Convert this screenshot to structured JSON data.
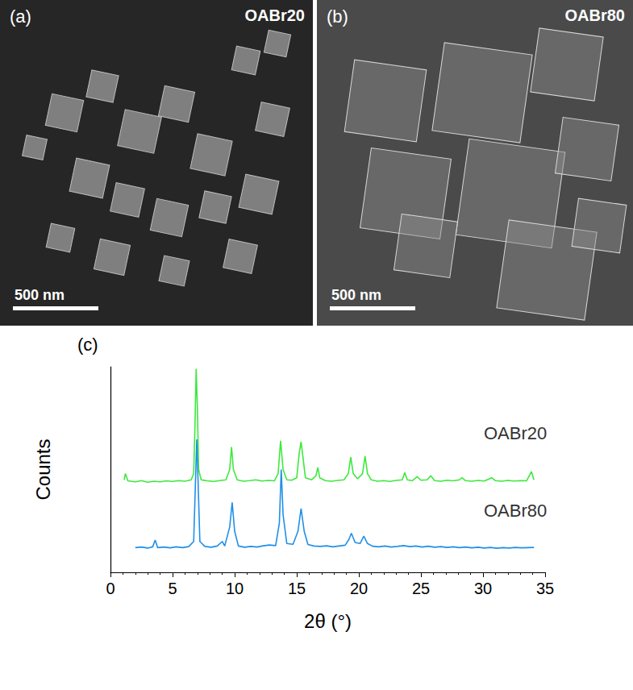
{
  "images": [
    {
      "letter": "(a)",
      "label": "OABr20",
      "scale_bar": "500 nm"
    },
    {
      "letter": "(b)",
      "label": "OABr80",
      "scale_bar": "500 nm"
    }
  ],
  "chart_data": {
    "type": "line",
    "annotations": [
      "(c)"
    ],
    "x_label": "2θ (°)",
    "y_label": "Counts",
    "xlim": [
      0,
      35
    ],
    "xticks": [
      0,
      5,
      10,
      15,
      20,
      25,
      30,
      35
    ],
    "ylim": [
      0,
      100
    ],
    "yticks": [],
    "tick_labels": "x",
    "grid": false,
    "series": [
      {
        "name": "OABr20",
        "color": "#3ee83e",
        "x": [
          1.1,
          1.2,
          1.4,
          2,
          2.5,
          3,
          3.5,
          4,
          4.5,
          5,
          5.5,
          6,
          6.5,
          6.7,
          6.8,
          6.9,
          7.0,
          7.1,
          7.3,
          7.8,
          8.3,
          8.8,
          9.3,
          9.6,
          9.75,
          9.9,
          10.2,
          10.7,
          11.2,
          11.7,
          12.2,
          12.7,
          13.2,
          13.5,
          13.7,
          13.9,
          14.2,
          14.6,
          15.0,
          15.2,
          15.35,
          15.5,
          15.7,
          16.2,
          16.55,
          16.7,
          16.85,
          17.3,
          17.8,
          18.3,
          18.8,
          19.15,
          19.35,
          19.55,
          19.9,
          20.3,
          20.5,
          20.7,
          21,
          21.5,
          22,
          22.5,
          23,
          23.5,
          23.7,
          23.9,
          24.3,
          24.7,
          25,
          25.5,
          25.8,
          26.1,
          26.6,
          27.1,
          27.6,
          28.1,
          28.3,
          28.6,
          29.1,
          29.6,
          30.1,
          30.7,
          31,
          31.5,
          32,
          32.5,
          33,
          33.5,
          33.9,
          34.1
        ],
        "values": [
          45,
          48,
          44.5,
          44,
          44.6,
          43.8,
          44.3,
          44,
          44.5,
          44.2,
          44.6,
          44.3,
          45,
          48,
          70,
          99,
          80,
          50,
          45,
          44.5,
          44.2,
          44.6,
          45,
          50,
          61,
          50,
          45,
          44.3,
          44.6,
          45,
          44.4,
          44.7,
          44.5,
          48,
          64,
          50,
          45,
          44.8,
          46,
          58,
          63.5,
          56,
          46,
          45,
          47,
          51,
          46,
          44.6,
          44.3,
          44.7,
          45,
          48,
          56,
          48,
          45.5,
          48,
          56.5,
          48,
          45,
          44.3,
          44.6,
          44.2,
          44.7,
          45,
          48.5,
          45,
          44.6,
          46.5,
          44.8,
          45,
          47,
          44.6,
          44.3,
          44.8,
          44.5,
          45,
          46,
          44.6,
          44.3,
          44.7,
          44.4,
          46,
          44.6,
          44.3,
          44.7,
          44.4,
          44.6,
          44.5,
          49,
          45
        ]
      },
      {
        "name": "OABr80",
        "color": "#1f8fe8",
        "x": [
          2,
          2.5,
          3,
          3.4,
          3.6,
          3.8,
          4.3,
          4.8,
          5.3,
          5.8,
          6.3,
          6.7,
          6.85,
          6.95,
          7.05,
          7.2,
          7.6,
          8.1,
          8.6,
          9.0,
          9.2,
          9.6,
          9.8,
          10.0,
          10.3,
          10.8,
          11.3,
          11.8,
          12.3,
          12.8,
          13.3,
          13.6,
          13.75,
          13.9,
          14.2,
          14.7,
          15.1,
          15.35,
          15.6,
          15.9,
          16.4,
          16.9,
          17.4,
          17.9,
          18.4,
          18.9,
          19.2,
          19.4,
          19.7,
          20.1,
          20.4,
          20.7,
          21.1,
          21.6,
          22.1,
          22.6,
          23.1,
          23.6,
          24.1,
          24.6,
          25.1,
          25.6,
          26.1,
          26.6,
          27.1,
          27.6,
          28.1,
          28.6,
          29.1,
          29.6,
          30.1,
          30.6,
          31.1,
          31.6,
          32.1,
          32.6,
          33.1,
          33.6,
          34.1
        ],
        "values": [
          12,
          12.3,
          11.8,
          12.4,
          15.7,
          12,
          12.3,
          11.9,
          12.4,
          12,
          12.5,
          15,
          45,
          64.7,
          45,
          15,
          12.6,
          12.2,
          12.8,
          15,
          12.8,
          22,
          34,
          20,
          12.8,
          12.2,
          12.6,
          12.3,
          12.9,
          13.3,
          13,
          24,
          50,
          28,
          14,
          13.6,
          20,
          31,
          20,
          13.5,
          12.8,
          12.6,
          12.9,
          12.4,
          12.8,
          13.2,
          16,
          19,
          14.5,
          14,
          17.6,
          14,
          12.7,
          12.4,
          12.8,
          12.3,
          12.6,
          13,
          12.5,
          12.8,
          12.3,
          12.7,
          12.2,
          12.5,
          12.1,
          12.4,
          12,
          12.3,
          11.9,
          12.2,
          11.8,
          12.1,
          11.7,
          12,
          11.8,
          12.1,
          11.9,
          12,
          12.1
        ]
      }
    ]
  }
}
